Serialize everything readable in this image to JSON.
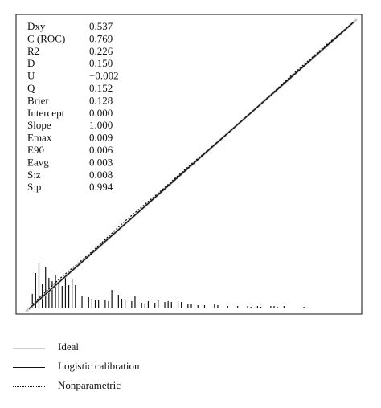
{
  "chart_data": {
    "type": "line",
    "title": "",
    "xlabel": "",
    "ylabel": "",
    "xlim": [
      0,
      1
    ],
    "ylim": [
      0,
      1
    ],
    "grid": false,
    "legend_placement": "bottom",
    "stats": [
      {
        "label": "Dxy",
        "value": "0.537"
      },
      {
        "label": "C (ROC)",
        "value": "0.769"
      },
      {
        "label": "R2",
        "value": "0.226"
      },
      {
        "label": "D",
        "value": "0.150"
      },
      {
        "label": "U",
        "value": "−0.002"
      },
      {
        "label": "Q",
        "value": "0.152"
      },
      {
        "label": "Brier",
        "value": "0.128"
      },
      {
        "label": "Intercept",
        "value": "0.000"
      },
      {
        "label": "Slope",
        "value": "1.000"
      },
      {
        "label": "Emax",
        "value": "0.009"
      },
      {
        "label": "E90",
        "value": "0.006"
      },
      {
        "label": "Eavg",
        "value": "0.003"
      },
      {
        "label": "S:z",
        "value": "0.008"
      },
      {
        "label": "S:p",
        "value": "0.994"
      }
    ],
    "series": [
      {
        "name": "Ideal",
        "style": "solid-light",
        "color": "#cccccc",
        "x": [
          0,
          1
        ],
        "y": [
          0,
          1
        ]
      },
      {
        "name": "Logistic calibration",
        "style": "solid",
        "color": "#111111",
        "x": [
          0.01,
          0.99
        ],
        "y": [
          0.01,
          0.99
        ]
      },
      {
        "name": "Nonparametric",
        "style": "dotted",
        "color": "#111111",
        "x": [
          0.02,
          0.1,
          0.2,
          0.3,
          0.4,
          0.5,
          0.6,
          0.7,
          0.8,
          0.9,
          0.99
        ],
        "y": [
          0.025,
          0.11,
          0.205,
          0.31,
          0.405,
          0.505,
          0.6,
          0.7,
          0.805,
          0.905,
          0.99
        ]
      }
    ],
    "histogram": {
      "x": [
        0.02,
        0.03,
        0.04,
        0.05,
        0.06,
        0.07,
        0.08,
        0.09,
        0.1,
        0.11,
        0.12,
        0.13,
        0.14,
        0.15,
        0.17,
        0.19,
        0.2,
        0.21,
        0.22,
        0.24,
        0.25,
        0.26,
        0.28,
        0.29,
        0.3,
        0.32,
        0.33,
        0.35,
        0.36,
        0.37,
        0.39,
        0.4,
        0.42,
        0.43,
        0.44,
        0.46,
        0.47,
        0.49,
        0.5,
        0.52,
        0.54,
        0.57,
        0.58,
        0.61,
        0.64,
        0.67,
        0.68,
        0.7,
        0.71,
        0.74,
        0.75,
        0.76,
        0.78,
        0.84
      ],
      "counts": [
        18,
        44,
        57,
        30,
        52,
        38,
        34,
        42,
        31,
        28,
        40,
        29,
        37,
        29,
        16,
        14,
        12,
        10,
        11,
        11,
        9,
        23,
        17,
        12,
        10,
        9,
        15,
        7,
        5,
        9,
        7,
        10,
        8,
        9,
        8,
        9,
        8,
        6,
        6,
        4,
        4,
        5,
        4,
        3,
        3,
        3,
        2,
        3,
        2,
        3,
        3,
        2,
        3,
        2
      ]
    }
  }
}
